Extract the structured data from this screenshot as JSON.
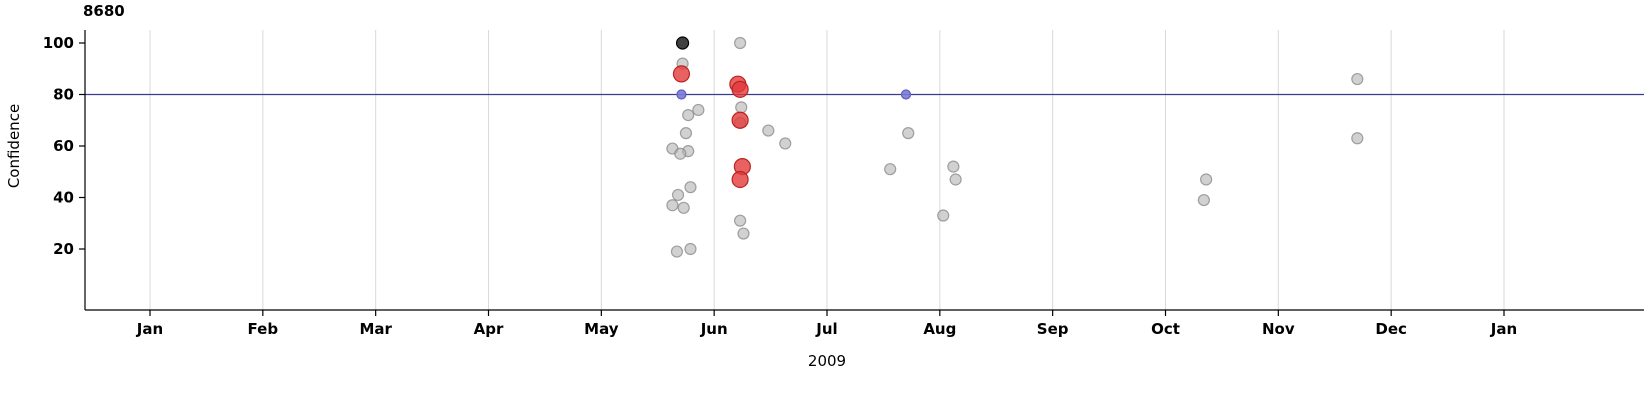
{
  "chart_data": {
    "type": "scatter",
    "title": "8680",
    "xlabel": "2009",
    "ylabel": "Confidence",
    "x_ticks": [
      "Jan",
      "Feb",
      "Mar",
      "Apr",
      "May",
      "Jun",
      "Jul",
      "Aug",
      "Sep",
      "Oct",
      "Nov",
      "Dec",
      "Jan"
    ],
    "x_unit": "months since Jan 2009 (decimal)",
    "y_ticks": [
      20,
      40,
      60,
      80,
      100
    ],
    "ylim": [
      8,
      108
    ],
    "grid": "vertical-only",
    "legend": "none",
    "reference_line": {
      "y": 80,
      "color": "#3b3b8f"
    },
    "point_style": {
      "gray": {
        "fill": "#b3b3b3",
        "stroke": "#8c8c8c",
        "r": 5.5,
        "opacity": 0.6
      },
      "black": {
        "fill": "#1f1f1f",
        "stroke": "#000000",
        "r": 6,
        "opacity": 0.85
      },
      "red": {
        "fill": "#e23b3b",
        "stroke": "#bb2222",
        "r": 8,
        "opacity": 0.8
      },
      "blue": {
        "fill": "#7b7bd6",
        "stroke": "#5c5cc0",
        "r": 4.5,
        "opacity": 0.9
      }
    },
    "points": {
      "gray": [
        [
          4.72,
          92
        ],
        [
          4.86,
          74
        ],
        [
          4.77,
          72
        ],
        [
          4.75,
          65
        ],
        [
          4.63,
          59
        ],
        [
          4.77,
          58
        ],
        [
          4.7,
          57
        ],
        [
          4.79,
          44
        ],
        [
          4.68,
          41
        ],
        [
          4.63,
          37
        ],
        [
          4.73,
          36
        ],
        [
          4.79,
          20
        ],
        [
          4.67,
          19
        ],
        [
          5.23,
          100
        ],
        [
          5.24,
          75
        ],
        [
          5.23,
          69
        ],
        [
          5.23,
          31
        ],
        [
          5.26,
          26
        ],
        [
          5.48,
          66
        ],
        [
          5.63,
          61
        ],
        [
          6.56,
          51
        ],
        [
          6.72,
          65
        ],
        [
          7.12,
          52
        ],
        [
          7.14,
          47
        ],
        [
          7.03,
          33
        ],
        [
          9.36,
          47
        ],
        [
          9.34,
          39
        ],
        [
          10.7,
          86
        ],
        [
          10.7,
          63
        ]
      ],
      "black": [
        [
          4.72,
          100
        ]
      ],
      "red": [
        [
          4.71,
          88
        ],
        [
          5.21,
          84
        ],
        [
          5.23,
          82
        ],
        [
          5.23,
          70
        ],
        [
          5.25,
          52
        ],
        [
          5.23,
          47
        ]
      ],
      "blue": [
        [
          4.71,
          80
        ],
        [
          6.7,
          80
        ]
      ]
    }
  }
}
